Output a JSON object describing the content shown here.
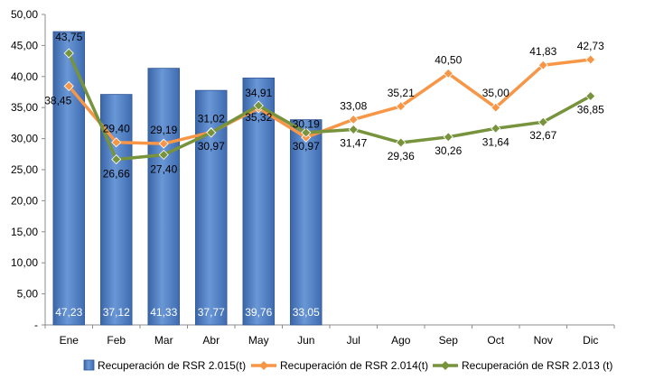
{
  "chart_data": {
    "type": "bar",
    "categories": [
      "Ene",
      "Feb",
      "Mar",
      "Abr",
      "May",
      "Jun",
      "Jul",
      "Ago",
      "Sep",
      "Oct",
      "Nov",
      "Dic"
    ],
    "ylim": [
      0,
      50
    ],
    "yticks": [
      "-",
      "5,00",
      "10,00",
      "15,00",
      "20,00",
      "25,00",
      "30,00",
      "35,00",
      "40,00",
      "45,00",
      "50,00"
    ],
    "ytick_values": [
      0,
      5,
      10,
      15,
      20,
      25,
      30,
      35,
      40,
      45,
      50
    ],
    "grid": false,
    "legend_position": "bottom",
    "series": [
      {
        "name": "Recuperación de RSR 2.015(t)",
        "kind": "bar",
        "color": "#4f81bd",
        "values": [
          47.23,
          37.12,
          41.33,
          37.77,
          39.76,
          33.05,
          null,
          null,
          null,
          null,
          null,
          null
        ],
        "labels": [
          "47,23",
          "37,12",
          "41,33",
          "37,77",
          "39,76",
          "33,05",
          null,
          null,
          null,
          null,
          null,
          null
        ]
      },
      {
        "name": "Recuperación de RSR 2.014(t)",
        "kind": "line",
        "color": "#f79646",
        "values": [
          38.45,
          29.4,
          29.19,
          31.02,
          34.91,
          30.19,
          33.08,
          35.21,
          40.5,
          35.0,
          41.83,
          42.73
        ],
        "labels": [
          "38,45",
          "29,40",
          "29,19",
          "31,02",
          "34,91",
          "30,19",
          "33,08",
          "35,21",
          "40,50",
          "35,00",
          "41,83",
          "42,73"
        ]
      },
      {
        "name": "Recuperación de RSR 2.013 (t)",
        "kind": "line",
        "color": "#77933c",
        "values": [
          43.75,
          26.66,
          27.4,
          30.97,
          35.32,
          30.97,
          31.47,
          29.36,
          30.26,
          31.64,
          32.67,
          36.85
        ],
        "labels": [
          "43,75",
          "26,66",
          "27,40",
          "30,97",
          "35,32",
          "30,97",
          "31,47",
          "29,36",
          "30,26",
          "31,64",
          "32,67",
          "36,85"
        ]
      }
    ]
  }
}
